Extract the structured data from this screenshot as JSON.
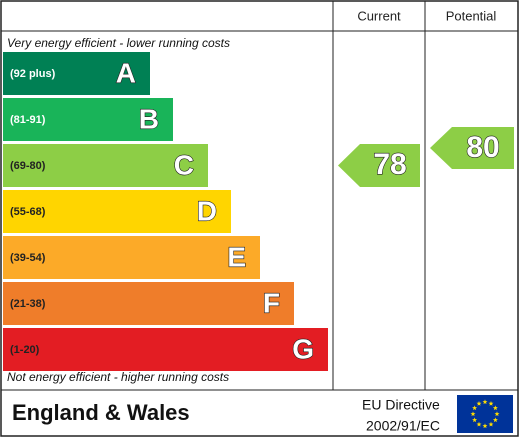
{
  "header": {
    "current": "Current",
    "potential": "Potential"
  },
  "top_note": "Very energy efficient - lower running costs",
  "bands": [
    {
      "range": "(92 plus)",
      "letter": "A",
      "color": "#008054"
    },
    {
      "range": "(81-91)",
      "letter": "B",
      "color": "#19b459"
    },
    {
      "range": "(69-80)",
      "letter": "C",
      "color": "#8dce46"
    },
    {
      "range": "(55-68)",
      "letter": "D",
      "color": "#ffd500"
    },
    {
      "range": "(39-54)",
      "letter": "E",
      "color": "#fcaa28"
    },
    {
      "range": "(21-38)",
      "letter": "F",
      "color": "#ef7d2a"
    },
    {
      "range": "(1-20)",
      "letter": "G",
      "color": "#e31d23"
    }
  ],
  "bottom_note": "Not energy efficient - higher running costs",
  "current": "78",
  "potential": "80",
  "footer": {
    "region": "England & Wales",
    "directive_line1": "EU Directive",
    "directive_line2": "2002/91/EC"
  }
}
